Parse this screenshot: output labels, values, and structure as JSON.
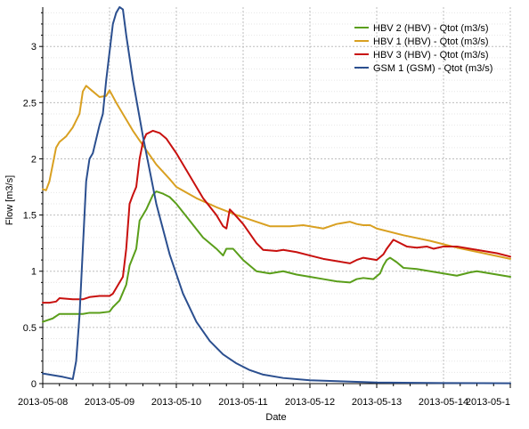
{
  "chart_data": {
    "type": "line",
    "title": "",
    "xlabel": "Date",
    "ylabel": "Flow [m3/s]",
    "x_ticks": [
      "2013-05-08",
      "2013-05-09",
      "2013-05-10",
      "2013-05-11",
      "2013-05-12",
      "2013-05-13",
      "2013-05-14",
      "2013-05-1"
    ],
    "y_ticks": [
      "0",
      "0.5",
      "1",
      "1.5",
      "2",
      "2.5",
      "3"
    ],
    "xlim": [
      0,
      7
    ],
    "ylim": [
      0,
      3.35
    ],
    "x_unit": "days since 2013-05-08",
    "grid": true,
    "legend_position": "top-right",
    "series": [
      {
        "name": "HBV 2 (HBV) - Qtot (m3/s)",
        "color": "#5a9e1a",
        "points": [
          [
            0.0,
            0.55
          ],
          [
            0.15,
            0.58
          ],
          [
            0.25,
            0.62
          ],
          [
            0.45,
            0.62
          ],
          [
            0.6,
            0.62
          ],
          [
            0.7,
            0.63
          ],
          [
            0.85,
            0.63
          ],
          [
            1.0,
            0.64
          ],
          [
            1.05,
            0.68
          ],
          [
            1.15,
            0.74
          ],
          [
            1.25,
            0.88
          ],
          [
            1.3,
            1.05
          ],
          [
            1.4,
            1.2
          ],
          [
            1.45,
            1.45
          ],
          [
            1.55,
            1.55
          ],
          [
            1.65,
            1.68
          ],
          [
            1.7,
            1.71
          ],
          [
            1.8,
            1.69
          ],
          [
            1.9,
            1.66
          ],
          [
            2.0,
            1.6
          ],
          [
            2.2,
            1.45
          ],
          [
            2.4,
            1.3
          ],
          [
            2.6,
            1.2
          ],
          [
            2.7,
            1.14
          ],
          [
            2.75,
            1.2
          ],
          [
            2.85,
            1.2
          ],
          [
            3.0,
            1.1
          ],
          [
            3.2,
            1.0
          ],
          [
            3.4,
            0.98
          ],
          [
            3.6,
            1.0
          ],
          [
            3.8,
            0.97
          ],
          [
            4.0,
            0.95
          ],
          [
            4.2,
            0.93
          ],
          [
            4.4,
            0.91
          ],
          [
            4.6,
            0.9
          ],
          [
            4.7,
            0.93
          ],
          [
            4.8,
            0.94
          ],
          [
            4.95,
            0.93
          ],
          [
            5.05,
            0.98
          ],
          [
            5.1,
            1.05
          ],
          [
            5.15,
            1.1
          ],
          [
            5.2,
            1.12
          ],
          [
            5.3,
            1.08
          ],
          [
            5.4,
            1.03
          ],
          [
            5.6,
            1.02
          ],
          [
            5.8,
            1.0
          ],
          [
            6.0,
            0.98
          ],
          [
            6.2,
            0.96
          ],
          [
            6.4,
            0.99
          ],
          [
            6.5,
            1.0
          ],
          [
            6.7,
            0.98
          ],
          [
            7.0,
            0.95
          ]
        ]
      },
      {
        "name": "HBV 1 (HBV) - Qtot (m3/s)",
        "color": "#d9a021",
        "points": [
          [
            0.0,
            1.73
          ],
          [
            0.05,
            1.72
          ],
          [
            0.1,
            1.8
          ],
          [
            0.2,
            2.1
          ],
          [
            0.25,
            2.15
          ],
          [
            0.35,
            2.2
          ],
          [
            0.45,
            2.28
          ],
          [
            0.55,
            2.4
          ],
          [
            0.6,
            2.6
          ],
          [
            0.65,
            2.65
          ],
          [
            0.75,
            2.6
          ],
          [
            0.85,
            2.55
          ],
          [
            0.95,
            2.56
          ],
          [
            1.0,
            2.61
          ],
          [
            1.1,
            2.5
          ],
          [
            1.2,
            2.4
          ],
          [
            1.35,
            2.25
          ],
          [
            1.5,
            2.12
          ],
          [
            1.7,
            1.95
          ],
          [
            1.9,
            1.82
          ],
          [
            2.0,
            1.75
          ],
          [
            2.3,
            1.65
          ],
          [
            2.6,
            1.57
          ],
          [
            2.9,
            1.5
          ],
          [
            3.2,
            1.44
          ],
          [
            3.4,
            1.4
          ],
          [
            3.7,
            1.4
          ],
          [
            3.9,
            1.41
          ],
          [
            4.2,
            1.38
          ],
          [
            4.4,
            1.42
          ],
          [
            4.6,
            1.44
          ],
          [
            4.7,
            1.42
          ],
          [
            4.8,
            1.41
          ],
          [
            4.9,
            1.41
          ],
          [
            5.0,
            1.38
          ],
          [
            5.4,
            1.32
          ],
          [
            5.8,
            1.27
          ],
          [
            6.2,
            1.21
          ],
          [
            6.6,
            1.16
          ],
          [
            7.0,
            1.11
          ]
        ]
      },
      {
        "name": "HBV 3 (HBV) - Qtot (m3/s)",
        "color": "#c8100e",
        "points": [
          [
            0.0,
            0.72
          ],
          [
            0.1,
            0.72
          ],
          [
            0.2,
            0.73
          ],
          [
            0.25,
            0.76
          ],
          [
            0.45,
            0.75
          ],
          [
            0.6,
            0.75
          ],
          [
            0.7,
            0.77
          ],
          [
            0.85,
            0.78
          ],
          [
            1.0,
            0.78
          ],
          [
            1.05,
            0.8
          ],
          [
            1.1,
            0.85
          ],
          [
            1.2,
            0.95
          ],
          [
            1.25,
            1.2
          ],
          [
            1.3,
            1.6
          ],
          [
            1.35,
            1.68
          ],
          [
            1.4,
            1.75
          ],
          [
            1.45,
            2.0
          ],
          [
            1.5,
            2.15
          ],
          [
            1.55,
            2.22
          ],
          [
            1.65,
            2.25
          ],
          [
            1.75,
            2.23
          ],
          [
            1.85,
            2.18
          ],
          [
            2.0,
            2.05
          ],
          [
            2.2,
            1.85
          ],
          [
            2.4,
            1.65
          ],
          [
            2.6,
            1.5
          ],
          [
            2.7,
            1.4
          ],
          [
            2.75,
            1.38
          ],
          [
            2.8,
            1.55
          ],
          [
            2.85,
            1.52
          ],
          [
            3.0,
            1.42
          ],
          [
            3.2,
            1.25
          ],
          [
            3.3,
            1.19
          ],
          [
            3.5,
            1.18
          ],
          [
            3.6,
            1.19
          ],
          [
            3.8,
            1.17
          ],
          [
            4.0,
            1.14
          ],
          [
            4.2,
            1.11
          ],
          [
            4.4,
            1.09
          ],
          [
            4.6,
            1.07
          ],
          [
            4.7,
            1.1
          ],
          [
            4.8,
            1.12
          ],
          [
            5.0,
            1.1
          ],
          [
            5.1,
            1.15
          ],
          [
            5.15,
            1.2
          ],
          [
            5.25,
            1.28
          ],
          [
            5.35,
            1.25
          ],
          [
            5.45,
            1.22
          ],
          [
            5.6,
            1.21
          ],
          [
            5.75,
            1.22
          ],
          [
            5.85,
            1.2
          ],
          [
            6.0,
            1.22
          ],
          [
            6.2,
            1.22
          ],
          [
            6.4,
            1.2
          ],
          [
            6.6,
            1.18
          ],
          [
            6.8,
            1.16
          ],
          [
            7.0,
            1.13
          ]
        ]
      },
      {
        "name": "GSM 1 (GSM) - Qtot (m3/s)",
        "color": "#2b4f8f",
        "points": [
          [
            0.0,
            0.09
          ],
          [
            0.1,
            0.08
          ],
          [
            0.2,
            0.07
          ],
          [
            0.3,
            0.06
          ],
          [
            0.45,
            0.04
          ],
          [
            0.5,
            0.2
          ],
          [
            0.55,
            0.6
          ],
          [
            0.6,
            1.2
          ],
          [
            0.65,
            1.8
          ],
          [
            0.7,
            2.0
          ],
          [
            0.75,
            2.05
          ],
          [
            0.85,
            2.3
          ],
          [
            0.9,
            2.4
          ],
          [
            0.95,
            2.7
          ],
          [
            1.0,
            2.95
          ],
          [
            1.05,
            3.2
          ],
          [
            1.1,
            3.3
          ],
          [
            1.15,
            3.35
          ],
          [
            1.2,
            3.33
          ],
          [
            1.25,
            3.1
          ],
          [
            1.35,
            2.7
          ],
          [
            1.5,
            2.2
          ],
          [
            1.7,
            1.6
          ],
          [
            1.9,
            1.15
          ],
          [
            2.1,
            0.8
          ],
          [
            2.3,
            0.55
          ],
          [
            2.5,
            0.38
          ],
          [
            2.7,
            0.26
          ],
          [
            2.9,
            0.18
          ],
          [
            3.1,
            0.12
          ],
          [
            3.3,
            0.08
          ],
          [
            3.6,
            0.05
          ],
          [
            4.0,
            0.03
          ],
          [
            4.5,
            0.02
          ],
          [
            5.0,
            0.01
          ],
          [
            6.0,
            0.005
          ],
          [
            7.0,
            0.003
          ]
        ]
      }
    ]
  }
}
